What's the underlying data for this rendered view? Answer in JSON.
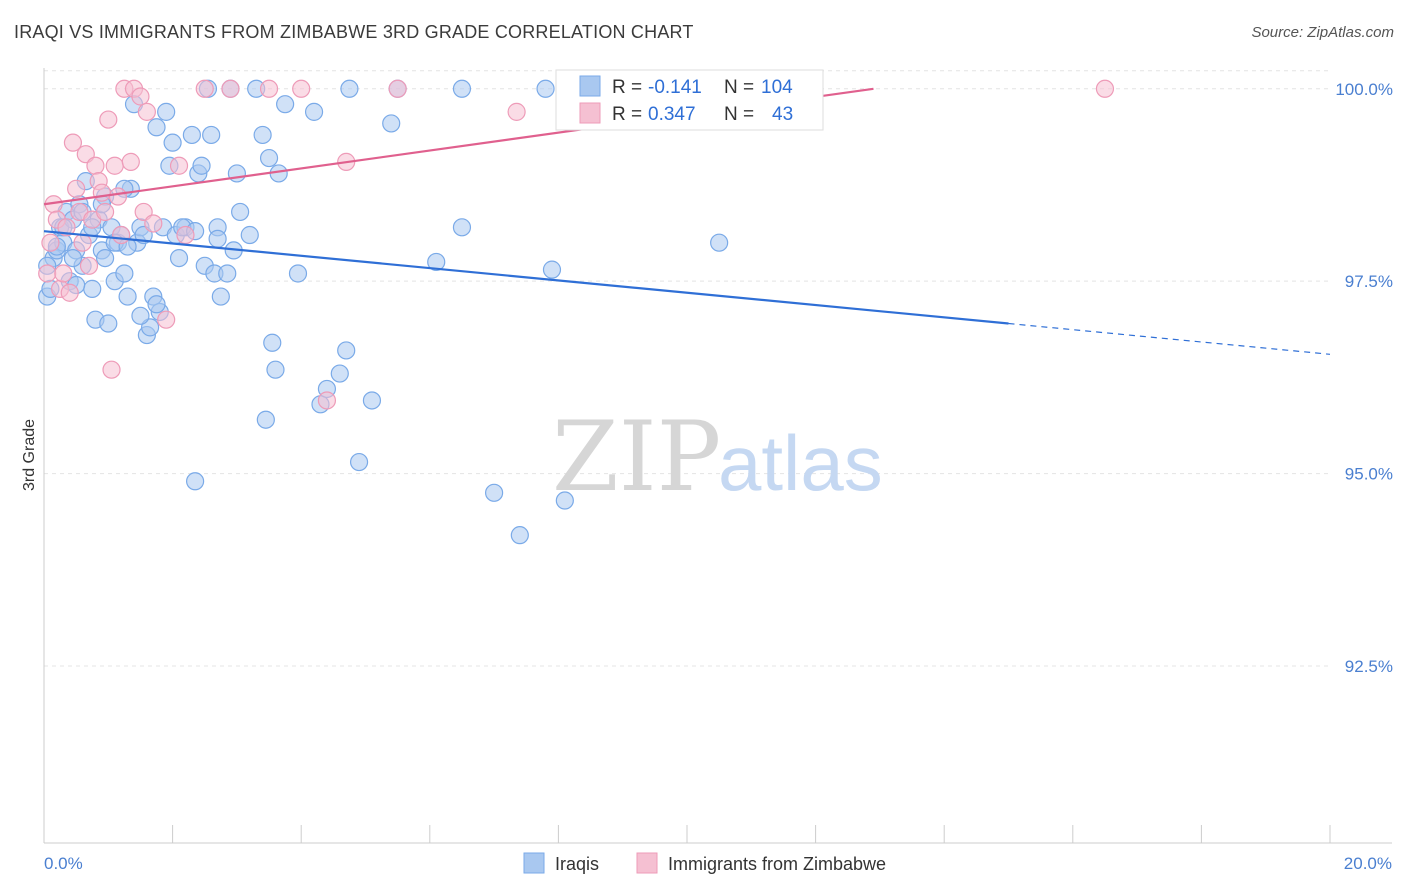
{
  "title": "IRAQI VS IMMIGRANTS FROM ZIMBABWE 3RD GRADE CORRELATION CHART",
  "source": "Source: ZipAtlas.com",
  "watermark": {
    "zip": "ZIP",
    "atlas": "atlas"
  },
  "chart_data": {
    "type": "scatter",
    "xlabel": "",
    "ylabel": "3rd Grade",
    "xlim": [
      0,
      20
    ],
    "ylim": [
      90.2,
      100.4
    ],
    "x_ticks": [
      0,
      2,
      4,
      6,
      8,
      10,
      12,
      14,
      16,
      18,
      20
    ],
    "x_tick_labels": {
      "start": "0.0%",
      "end": "20.0%"
    },
    "y_ticks": [
      92.5,
      95.0,
      97.5,
      100.0
    ],
    "y_tick_labels": [
      "92.5%",
      "95.0%",
      "97.5%",
      "100.0%"
    ],
    "grid": true,
    "legend": {
      "placement": "top-center",
      "rows": [
        {
          "r_label": "R =",
          "r_value": "-0.141",
          "n_label": "N =",
          "n_value": "104"
        },
        {
          "r_label": "R =",
          "r_value": "0.347",
          "n_label": "N =",
          "n_value": "43"
        }
      ]
    },
    "series": [
      {
        "name": "Iraqis",
        "color": "#7aaae8",
        "fill": "#a9c8f0",
        "line_color": "#2f6fd6",
        "trend": {
          "x0": 0,
          "y0": 98.15,
          "x1": 15.0,
          "y1": 96.95,
          "dash_to_x": 20,
          "dash_to_y": 96.55
        },
        "points": [
          [
            0.05,
            97.3
          ],
          [
            0.1,
            97.4
          ],
          [
            0.15,
            97.8
          ],
          [
            0.2,
            97.9
          ],
          [
            0.25,
            98.2
          ],
          [
            0.3,
            98.0
          ],
          [
            0.35,
            98.4
          ],
          [
            0.4,
            97.5
          ],
          [
            0.45,
            98.3
          ],
          [
            0.5,
            97.9
          ],
          [
            0.55,
            98.5
          ],
          [
            0.6,
            97.7
          ],
          [
            0.65,
            98.8
          ],
          [
            0.7,
            98.1
          ],
          [
            0.75,
            97.4
          ],
          [
            0.8,
            97.0
          ],
          [
            0.85,
            98.3
          ],
          [
            0.9,
            97.9
          ],
          [
            0.95,
            98.6
          ],
          [
            1.0,
            96.95
          ],
          [
            1.05,
            98.2
          ],
          [
            1.1,
            97.5
          ],
          [
            1.15,
            98.0
          ],
          [
            1.2,
            98.1
          ],
          [
            1.25,
            97.6
          ],
          [
            1.3,
            97.3
          ],
          [
            1.35,
            98.7
          ],
          [
            1.4,
            99.8
          ],
          [
            1.45,
            98.0
          ],
          [
            1.5,
            98.2
          ],
          [
            1.6,
            96.8
          ],
          [
            1.65,
            96.9
          ],
          [
            1.7,
            97.3
          ],
          [
            1.75,
            99.5
          ],
          [
            1.8,
            97.1
          ],
          [
            1.85,
            98.2
          ],
          [
            1.9,
            99.7
          ],
          [
            1.95,
            99.0
          ],
          [
            2.0,
            99.3
          ],
          [
            2.05,
            98.1
          ],
          [
            2.1,
            97.8
          ],
          [
            2.2,
            98.2
          ],
          [
            2.3,
            99.4
          ],
          [
            2.35,
            94.9
          ],
          [
            2.4,
            98.9
          ],
          [
            2.45,
            99.0
          ],
          [
            2.5,
            97.7
          ],
          [
            2.55,
            100.0
          ],
          [
            2.6,
            99.4
          ],
          [
            2.65,
            97.6
          ],
          [
            2.7,
            98.2
          ],
          [
            2.75,
            97.3
          ],
          [
            2.85,
            97.6
          ],
          [
            2.9,
            100.0
          ],
          [
            3.0,
            98.9
          ],
          [
            3.05,
            98.4
          ],
          [
            3.2,
            98.1
          ],
          [
            3.3,
            100.0
          ],
          [
            3.4,
            99.4
          ],
          [
            3.45,
            95.7
          ],
          [
            3.5,
            99.1
          ],
          [
            3.55,
            96.7
          ],
          [
            3.6,
            96.35
          ],
          [
            3.65,
            98.9
          ],
          [
            3.75,
            99.8
          ],
          [
            3.95,
            97.6
          ],
          [
            4.2,
            99.7
          ],
          [
            4.3,
            95.9
          ],
          [
            4.4,
            96.1
          ],
          [
            4.6,
            96.3
          ],
          [
            4.7,
            96.6
          ],
          [
            4.75,
            100.0
          ],
          [
            4.9,
            95.15
          ],
          [
            5.1,
            95.95
          ],
          [
            5.4,
            99.55
          ],
          [
            5.5,
            100.0
          ],
          [
            6.1,
            97.75
          ],
          [
            6.5,
            98.2
          ],
          [
            6.5,
            100.0
          ],
          [
            7.0,
            94.75
          ],
          [
            7.4,
            94.2
          ],
          [
            7.8,
            100.0
          ],
          [
            7.9,
            97.65
          ],
          [
            8.1,
            94.65
          ],
          [
            10.5,
            98.0
          ],
          [
            0.05,
            97.7
          ],
          [
            0.3,
            98.2
          ],
          [
            0.45,
            97.8
          ],
          [
            0.9,
            98.5
          ],
          [
            1.25,
            98.7
          ],
          [
            1.55,
            98.1
          ],
          [
            2.15,
            98.2
          ],
          [
            2.95,
            97.9
          ],
          [
            0.6,
            98.4
          ],
          [
            0.75,
            98.2
          ],
          [
            1.1,
            98.0
          ],
          [
            1.3,
            97.95
          ],
          [
            1.5,
            97.05
          ],
          [
            1.75,
            97.2
          ],
          [
            2.35,
            98.15
          ],
          [
            2.7,
            98.05
          ],
          [
            0.2,
            97.95
          ],
          [
            0.5,
            97.45
          ],
          [
            0.95,
            97.8
          ]
        ]
      },
      {
        "name": "Immigrants from Zimbabwe",
        "color": "#ee9bb8",
        "fill": "#f5c0d2",
        "line_color": "#e0608e",
        "trend": {
          "x0": 0,
          "y0": 98.5,
          "x1": 12.9,
          "y1": 100.0
        },
        "points": [
          [
            0.05,
            97.6
          ],
          [
            0.1,
            98.0
          ],
          [
            0.15,
            98.5
          ],
          [
            0.2,
            98.3
          ],
          [
            0.25,
            97.4
          ],
          [
            0.3,
            97.6
          ],
          [
            0.35,
            98.2
          ],
          [
            0.4,
            97.35
          ],
          [
            0.45,
            99.3
          ],
          [
            0.5,
            98.7
          ],
          [
            0.55,
            98.4
          ],
          [
            0.6,
            98.0
          ],
          [
            0.65,
            99.15
          ],
          [
            0.7,
            97.7
          ],
          [
            0.75,
            98.3
          ],
          [
            0.8,
            99.0
          ],
          [
            0.85,
            98.8
          ],
          [
            0.9,
            98.65
          ],
          [
            0.95,
            98.4
          ],
          [
            1.0,
            99.6
          ],
          [
            1.05,
            96.35
          ],
          [
            1.1,
            99.0
          ],
          [
            1.15,
            98.6
          ],
          [
            1.2,
            98.1
          ],
          [
            1.25,
            100.0
          ],
          [
            1.35,
            99.05
          ],
          [
            1.4,
            100.0
          ],
          [
            1.5,
            99.9
          ],
          [
            1.55,
            98.4
          ],
          [
            1.6,
            99.7
          ],
          [
            1.7,
            98.25
          ],
          [
            1.9,
            97.0
          ],
          [
            2.1,
            99.0
          ],
          [
            2.2,
            98.1
          ],
          [
            2.5,
            100.0
          ],
          [
            2.9,
            100.0
          ],
          [
            3.5,
            100.0
          ],
          [
            4.0,
            100.0
          ],
          [
            4.4,
            95.95
          ],
          [
            4.7,
            99.05
          ],
          [
            5.5,
            100.0
          ],
          [
            7.35,
            99.7
          ],
          [
            16.5,
            100.0
          ]
        ]
      }
    ]
  }
}
